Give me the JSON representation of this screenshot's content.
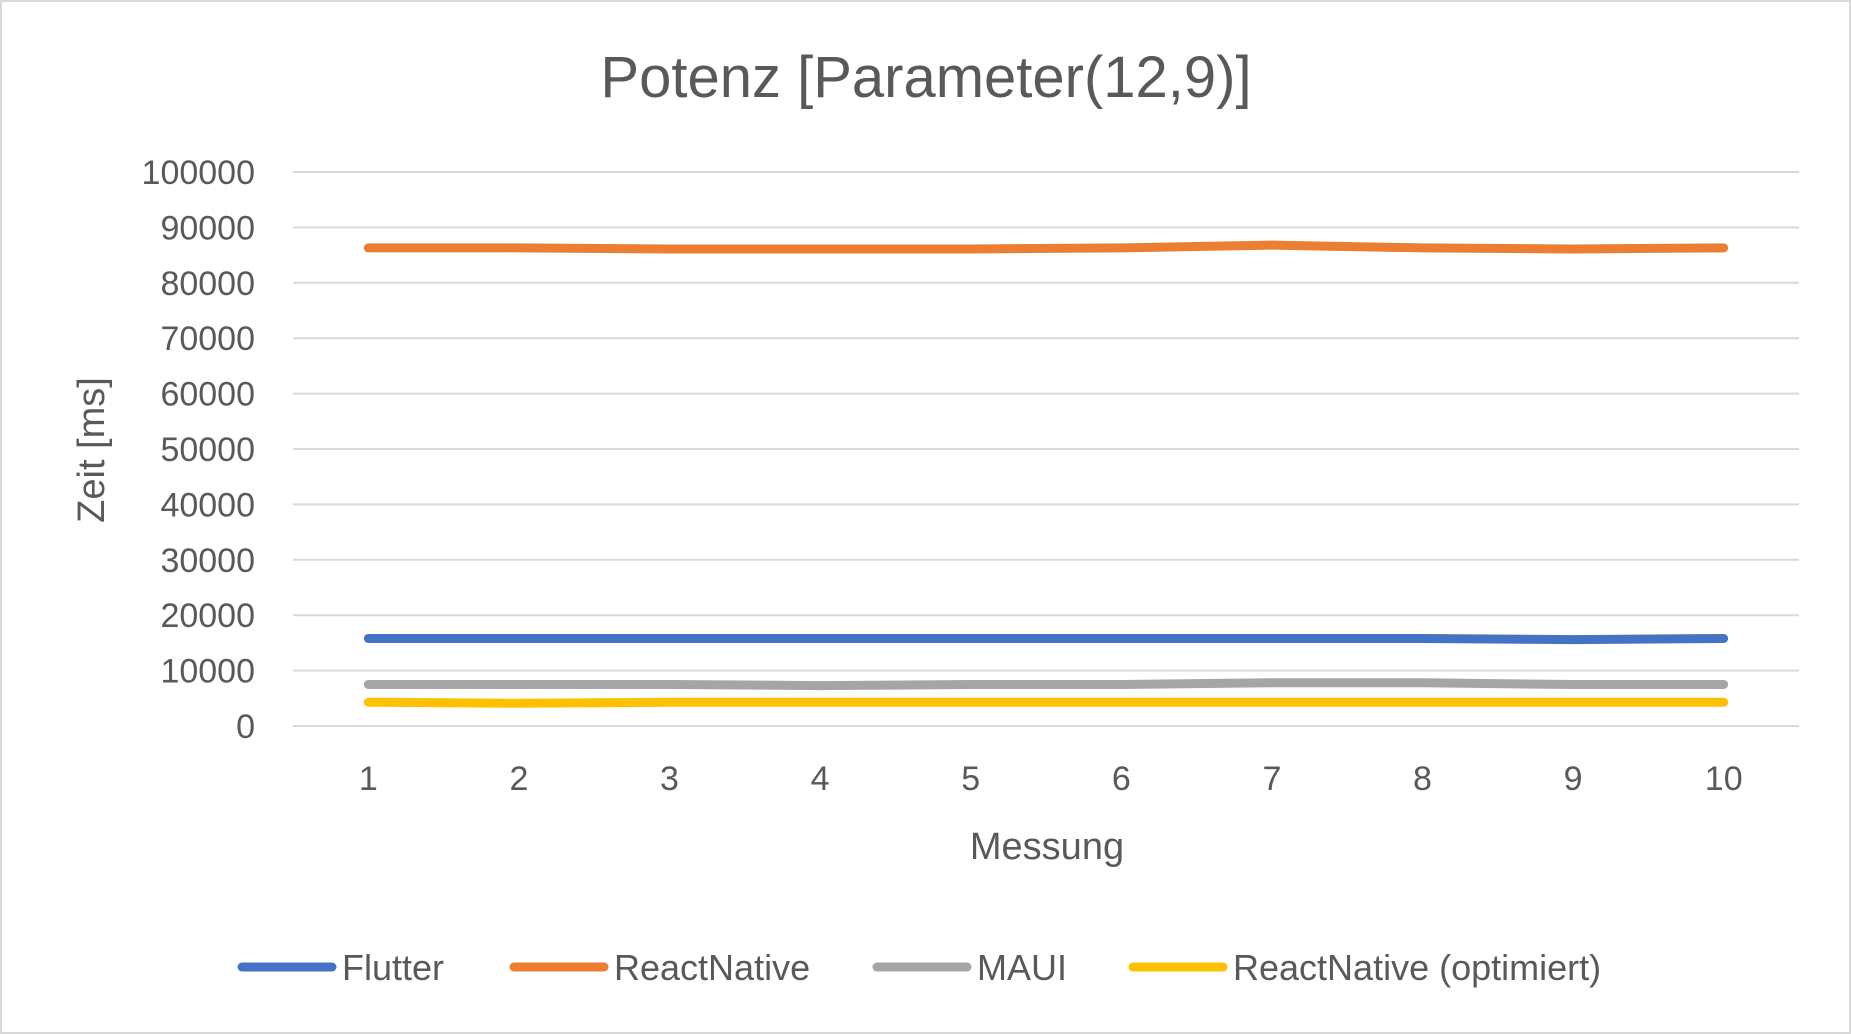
{
  "chart_data": {
    "type": "line",
    "title": "Potenz [Parameter(12,9)]",
    "xlabel": "Messung",
    "ylabel": "Zeit [ms]",
    "categories": [
      "1",
      "2",
      "3",
      "4",
      "5",
      "6",
      "7",
      "8",
      "9",
      "10"
    ],
    "ylim": [
      0,
      100000
    ],
    "yticks": [
      "0",
      "10000",
      "20000",
      "30000",
      "40000",
      "50000",
      "60000",
      "70000",
      "80000",
      "90000",
      "100000"
    ],
    "grid": true,
    "legend_position": "bottom",
    "series": [
      {
        "name": "Flutter",
        "color": "#4472C4",
        "values": [
          15800,
          15800,
          15800,
          15800,
          15800,
          15800,
          15800,
          15800,
          15600,
          15800
        ]
      },
      {
        "name": "ReactNative",
        "color": "#ED7D31",
        "values": [
          86300,
          86300,
          86100,
          86100,
          86100,
          86300,
          86800,
          86300,
          86100,
          86300
        ]
      },
      {
        "name": "MAUI",
        "color": "#A5A5A5",
        "values": [
          7500,
          7500,
          7500,
          7300,
          7500,
          7500,
          7800,
          7800,
          7500,
          7500
        ]
      },
      {
        "name": "ReactNative (optimiert)",
        "color": "#FFC000",
        "values": [
          4300,
          4100,
          4300,
          4300,
          4300,
          4300,
          4300,
          4300,
          4300,
          4300
        ]
      }
    ]
  }
}
